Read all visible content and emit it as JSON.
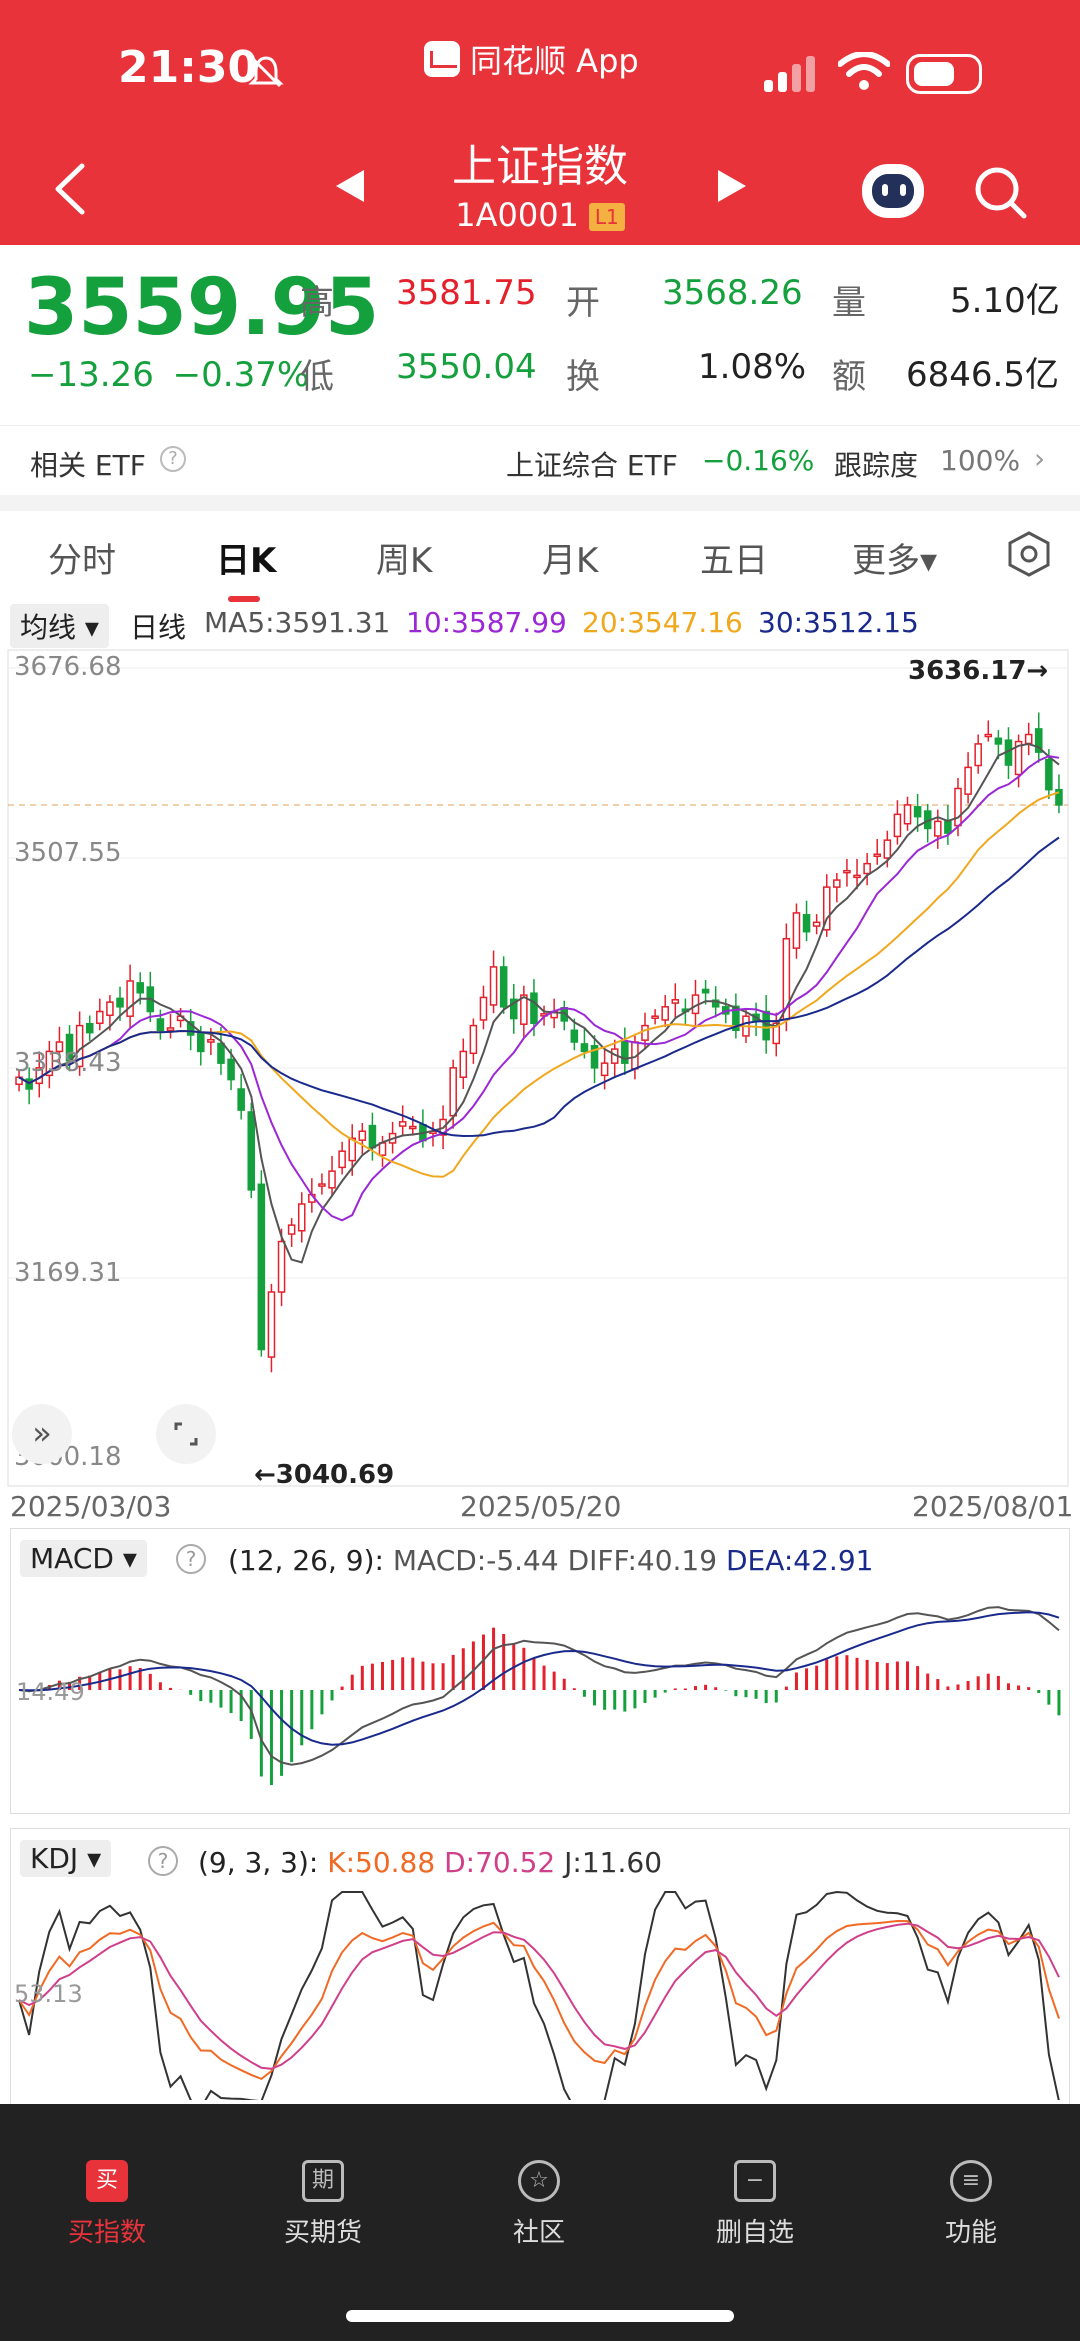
{
  "status": {
    "time": "21:30",
    "app_name": "同花顺 App"
  },
  "header": {
    "title": "上证指数",
    "code": "1A0001",
    "level_tag": "L1"
  },
  "quote": {
    "price": "3559.95",
    "change": "−13.26",
    "change_pct": "−0.37%",
    "high_label": "高",
    "high": "3581.75",
    "low_label": "低",
    "low": "3550.04",
    "open_label": "开",
    "open": "3568.26",
    "turnover_label": "换",
    "turnover": "1.08%",
    "volume_label": "量",
    "volume": "5.10亿",
    "amount_label": "额",
    "amount": "6846.5亿"
  },
  "etf": {
    "label": "相关 ETF",
    "name": "上证综合 ETF",
    "change": "−0.16%",
    "tracking_label": "跟踪度",
    "tracking": "100%"
  },
  "tabs": [
    "分时",
    "日K",
    "周K",
    "月K",
    "五日",
    "更多▾"
  ],
  "ma": {
    "selector": "均线 ▾",
    "period": "日线",
    "ma5": "MA5:3591.31",
    "ma10": "10:3587.99",
    "ma20": "20:3547.16",
    "ma30": "30:3512.15"
  },
  "axis": {
    "y_labels": [
      "3676.68",
      "3507.55",
      "3338.43",
      "3169.31",
      "3000.18"
    ],
    "high_marker": "3636.17→",
    "low_marker": "←3040.69",
    "dates": [
      "2025/03/03",
      "2025/05/20",
      "2025/08/01"
    ]
  },
  "macd": {
    "selector": "MACD ▾",
    "params": "(12, 26, 9):",
    "macd": "MACD:-5.44",
    "diff": "DIFF:40.19",
    "dea": "DEA:42.91",
    "axis_label": "14.49"
  },
  "kdj": {
    "selector": "KDJ ▾",
    "params": "(9, 3, 3):",
    "k": "K:50.88",
    "d": "D:70.52",
    "j": "J:11.60",
    "axis_label": "53.13"
  },
  "nav": [
    "买指数",
    "买期货",
    "社区",
    "删自选",
    "功能"
  ],
  "colors": {
    "up": "#e3202b",
    "down": "#14a03c",
    "ma5": "#555555",
    "ma10": "#9b27d6",
    "ma20": "#f0a81e",
    "ma30": "#1a2a8c",
    "header": "#e8333b"
  },
  "chart_data": {
    "type": "candlestick",
    "x_start": "2025/03/03",
    "x_end": "2025/08/01",
    "ylim": [
      3000.18,
      3676.68
    ],
    "close": [
      3328,
      3318,
      3336,
      3350,
      3358,
      3342,
      3372,
      3366,
      3384,
      3392,
      3388,
      3410,
      3400,
      3384,
      3368,
      3370,
      3380,
      3364,
      3350,
      3360,
      3340,
      3326,
      3300,
      3232,
      3096,
      3145,
      3188,
      3202,
      3220,
      3228,
      3237,
      3248,
      3265,
      3276,
      3282,
      3268,
      3272,
      3280,
      3290,
      3286,
      3274,
      3282,
      3292,
      3336,
      3350,
      3372,
      3396,
      3422,
      3388,
      3378,
      3398,
      3374,
      3382,
      3384,
      3376,
      3358,
      3350,
      3336,
      3340,
      3352,
      3340,
      3358,
      3372,
      3380,
      3388,
      3394,
      3384,
      3398,
      3400,
      3388,
      3382,
      3368,
      3380,
      3376,
      3360,
      3374,
      3446,
      3468,
      3452,
      3460,
      3490,
      3496,
      3504,
      3500,
      3510,
      3518,
      3530,
      3552,
      3560,
      3550,
      3540,
      3546,
      3536,
      3574,
      3592,
      3612,
      3620,
      3612,
      3594,
      3614,
      3620,
      3605,
      3573,
      3560
    ]
  }
}
